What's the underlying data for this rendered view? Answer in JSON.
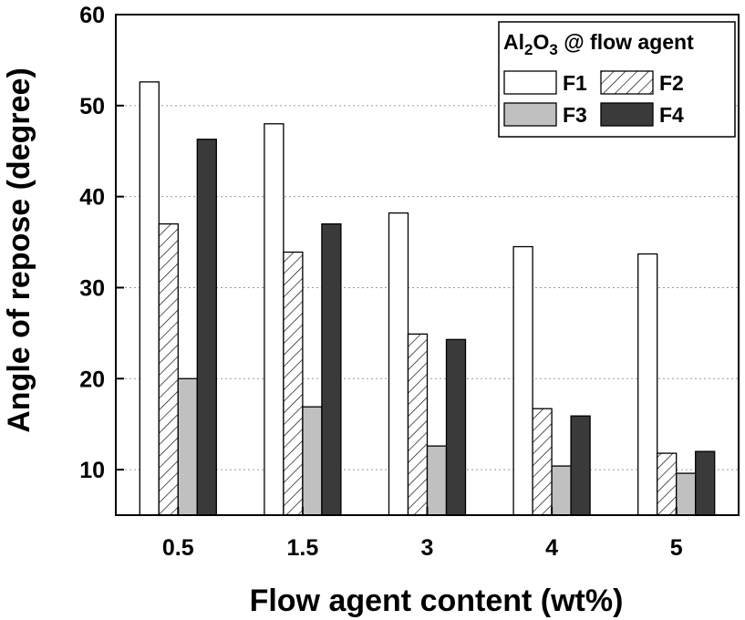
{
  "chart_data": {
    "type": "bar",
    "categories": [
      "0.5",
      "1.5",
      "3",
      "4",
      "5"
    ],
    "series": [
      {
        "name": "F1",
        "values": [
          52.6,
          48.0,
          38.2,
          34.5,
          33.7
        ],
        "fill": "#ffffff",
        "pattern": "none"
      },
      {
        "name": "F2",
        "values": [
          37.0,
          33.9,
          24.9,
          16.7,
          11.8
        ],
        "fill": "#ffffff",
        "pattern": "hatch"
      },
      {
        "name": "F3",
        "values": [
          20.0,
          16.9,
          12.6,
          10.4,
          9.6
        ],
        "fill": "#c0c0c0",
        "pattern": "none"
      },
      {
        "name": "F4",
        "values": [
          46.3,
          37.0,
          24.3,
          15.9,
          12.0
        ],
        "fill": "#3a3a3a",
        "pattern": "none"
      }
    ],
    "title": "",
    "xlabel": "Flow agent content (wt%)",
    "ylabel": "Angle of repose (degree)",
    "ylim": [
      5,
      60
    ],
    "yticks": [
      "10",
      "20",
      "30",
      "40",
      "50",
      "60"
    ],
    "grid": "horizontal dotted",
    "legend": {
      "placement": "top-right",
      "title_parts": [
        "Al",
        "2",
        "O",
        "3",
        " @ flow agent"
      ]
    }
  }
}
